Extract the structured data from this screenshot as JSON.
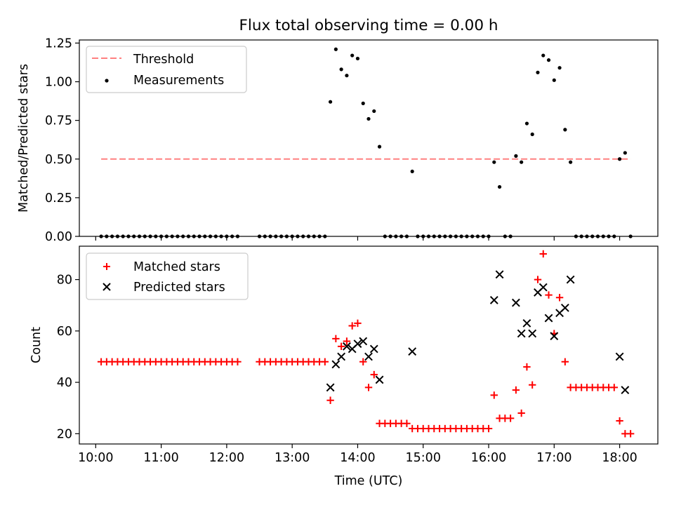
{
  "chart_data": [
    {
      "type": "scatter",
      "title": "Flux total observing time = 0.00 h",
      "xlabel": "",
      "ylabel": "Matched/Predicted stars",
      "xlim": [
        "09:45",
        "18:35"
      ],
      "ylim": [
        0,
        1.27
      ],
      "yticks": [
        "0.00",
        "0.25",
        "0.50",
        "0.75",
        "1.00",
        "1.25"
      ],
      "grid": false,
      "legend_position": "top-left",
      "threshold": {
        "name": "Threshold",
        "value": 0.5,
        "x_start": "10:05",
        "x_end": "18:10",
        "color": "#ff8080"
      },
      "series": [
        {
          "name": "Measurements",
          "color": "#000000",
          "points": [
            [
              "10:05",
              0
            ],
            [
              "10:10",
              0
            ],
            [
              "10:15",
              0
            ],
            [
              "10:20",
              0
            ],
            [
              "10:25",
              0
            ],
            [
              "10:30",
              0
            ],
            [
              "10:35",
              0
            ],
            [
              "10:40",
              0
            ],
            [
              "10:45",
              0
            ],
            [
              "10:50",
              0
            ],
            [
              "10:55",
              0
            ],
            [
              "11:00",
              0
            ],
            [
              "11:05",
              0
            ],
            [
              "11:10",
              0
            ],
            [
              "11:15",
              0
            ],
            [
              "11:20",
              0
            ],
            [
              "11:25",
              0
            ],
            [
              "11:30",
              0
            ],
            [
              "11:35",
              0
            ],
            [
              "11:40",
              0
            ],
            [
              "11:45",
              0
            ],
            [
              "11:50",
              0
            ],
            [
              "11:55",
              0
            ],
            [
              "12:00",
              0
            ],
            [
              "12:05",
              0
            ],
            [
              "12:10",
              0
            ],
            [
              "12:30",
              0
            ],
            [
              "12:35",
              0
            ],
            [
              "12:40",
              0
            ],
            [
              "12:45",
              0
            ],
            [
              "12:50",
              0
            ],
            [
              "12:55",
              0
            ],
            [
              "13:00",
              0
            ],
            [
              "13:05",
              0
            ],
            [
              "13:10",
              0
            ],
            [
              "13:15",
              0
            ],
            [
              "13:20",
              0
            ],
            [
              "13:25",
              0
            ],
            [
              "13:30",
              0
            ],
            [
              "13:35",
              0.87
            ],
            [
              "13:40",
              1.21
            ],
            [
              "13:45",
              1.08
            ],
            [
              "13:50",
              1.04
            ],
            [
              "13:55",
              1.17
            ],
            [
              "14:00",
              1.15
            ],
            [
              "14:05",
              0.86
            ],
            [
              "14:10",
              0.76
            ],
            [
              "14:15",
              0.81
            ],
            [
              "14:20",
              0.58
            ],
            [
              "14:25",
              0
            ],
            [
              "14:30",
              0
            ],
            [
              "14:35",
              0
            ],
            [
              "14:40",
              0
            ],
            [
              "14:45",
              0
            ],
            [
              "14:50",
              0.42
            ],
            [
              "14:55",
              0
            ],
            [
              "15:00",
              0
            ],
            [
              "15:05",
              0
            ],
            [
              "15:10",
              0
            ],
            [
              "15:15",
              0
            ],
            [
              "15:20",
              0
            ],
            [
              "15:25",
              0
            ],
            [
              "15:30",
              0
            ],
            [
              "15:35",
              0
            ],
            [
              "15:40",
              0
            ],
            [
              "15:45",
              0
            ],
            [
              "15:50",
              0
            ],
            [
              "15:55",
              0
            ],
            [
              "16:00",
              0
            ],
            [
              "16:05",
              0.48
            ],
            [
              "16:10",
              0.32
            ],
            [
              "16:15",
              0
            ],
            [
              "16:20",
              0
            ],
            [
              "16:25",
              0.52
            ],
            [
              "16:30",
              0.48
            ],
            [
              "16:35",
              0.73
            ],
            [
              "16:40",
              0.66
            ],
            [
              "16:45",
              1.06
            ],
            [
              "16:50",
              1.17
            ],
            [
              "16:55",
              1.14
            ],
            [
              "17:00",
              1.01
            ],
            [
              "17:05",
              1.09
            ],
            [
              "17:10",
              0.69
            ],
            [
              "17:15",
              0.48
            ],
            [
              "17:20",
              0
            ],
            [
              "17:25",
              0
            ],
            [
              "17:30",
              0
            ],
            [
              "17:35",
              0
            ],
            [
              "17:40",
              0
            ],
            [
              "17:45",
              0
            ],
            [
              "17:50",
              0
            ],
            [
              "17:55",
              0
            ],
            [
              "18:00",
              0.5
            ],
            [
              "18:05",
              0.54
            ],
            [
              "18:10",
              0
            ]
          ]
        }
      ]
    },
    {
      "type": "scatter",
      "title": "",
      "xlabel": "Time (UTC)",
      "ylabel": "Count",
      "xlim": [
        "09:45",
        "18:35"
      ],
      "ylim": [
        16,
        93
      ],
      "xticks": [
        "10:00",
        "11:00",
        "12:00",
        "13:00",
        "14:00",
        "15:00",
        "16:00",
        "17:00",
        "18:00"
      ],
      "yticks": [
        "20",
        "40",
        "60",
        "80"
      ],
      "grid": false,
      "legend_position": "top-left",
      "series": [
        {
          "name": "Matched stars",
          "marker": "plus",
          "color": "#ff0000",
          "points": [
            [
              "10:05",
              48
            ],
            [
              "10:10",
              48
            ],
            [
              "10:15",
              48
            ],
            [
              "10:20",
              48
            ],
            [
              "10:25",
              48
            ],
            [
              "10:30",
              48
            ],
            [
              "10:35",
              48
            ],
            [
              "10:40",
              48
            ],
            [
              "10:45",
              48
            ],
            [
              "10:50",
              48
            ],
            [
              "10:55",
              48
            ],
            [
              "11:00",
              48
            ],
            [
              "11:05",
              48
            ],
            [
              "11:10",
              48
            ],
            [
              "11:15",
              48
            ],
            [
              "11:20",
              48
            ],
            [
              "11:25",
              48
            ],
            [
              "11:30",
              48
            ],
            [
              "11:35",
              48
            ],
            [
              "11:40",
              48
            ],
            [
              "11:45",
              48
            ],
            [
              "11:50",
              48
            ],
            [
              "11:55",
              48
            ],
            [
              "12:00",
              48
            ],
            [
              "12:05",
              48
            ],
            [
              "12:10",
              48
            ],
            [
              "12:30",
              48
            ],
            [
              "12:35",
              48
            ],
            [
              "12:40",
              48
            ],
            [
              "12:45",
              48
            ],
            [
              "12:50",
              48
            ],
            [
              "12:55",
              48
            ],
            [
              "13:00",
              48
            ],
            [
              "13:05",
              48
            ],
            [
              "13:10",
              48
            ],
            [
              "13:15",
              48
            ],
            [
              "13:20",
              48
            ],
            [
              "13:25",
              48
            ],
            [
              "13:30",
              48
            ],
            [
              "13:35",
              33
            ],
            [
              "13:40",
              57
            ],
            [
              "13:45",
              54
            ],
            [
              "13:50",
              56
            ],
            [
              "13:55",
              62
            ],
            [
              "14:00",
              63
            ],
            [
              "14:05",
              48
            ],
            [
              "14:10",
              38
            ],
            [
              "14:15",
              43
            ],
            [
              "14:20",
              24
            ],
            [
              "14:25",
              24
            ],
            [
              "14:30",
              24
            ],
            [
              "14:35",
              24
            ],
            [
              "14:40",
              24
            ],
            [
              "14:45",
              24
            ],
            [
              "14:50",
              22
            ],
            [
              "14:55",
              22
            ],
            [
              "15:00",
              22
            ],
            [
              "15:05",
              22
            ],
            [
              "15:10",
              22
            ],
            [
              "15:15",
              22
            ],
            [
              "15:20",
              22
            ],
            [
              "15:25",
              22
            ],
            [
              "15:30",
              22
            ],
            [
              "15:35",
              22
            ],
            [
              "15:40",
              22
            ],
            [
              "15:45",
              22
            ],
            [
              "15:50",
              22
            ],
            [
              "15:55",
              22
            ],
            [
              "16:00",
              22
            ],
            [
              "16:05",
              35
            ],
            [
              "16:10",
              26
            ],
            [
              "16:15",
              26
            ],
            [
              "16:20",
              26
            ],
            [
              "16:25",
              37
            ],
            [
              "16:30",
              28
            ],
            [
              "16:35",
              46
            ],
            [
              "16:40",
              39
            ],
            [
              "16:45",
              80
            ],
            [
              "16:50",
              90
            ],
            [
              "16:55",
              74
            ],
            [
              "17:00",
              59
            ],
            [
              "17:05",
              73
            ],
            [
              "17:10",
              48
            ],
            [
              "17:15",
              38
            ],
            [
              "17:20",
              38
            ],
            [
              "17:25",
              38
            ],
            [
              "17:30",
              38
            ],
            [
              "17:35",
              38
            ],
            [
              "17:40",
              38
            ],
            [
              "17:45",
              38
            ],
            [
              "17:50",
              38
            ],
            [
              "17:55",
              38
            ],
            [
              "18:00",
              25
            ],
            [
              "18:05",
              20
            ],
            [
              "18:10",
              20
            ]
          ]
        },
        {
          "name": "Predicted stars",
          "marker": "x",
          "color": "#000000",
          "points": [
            [
              "13:35",
              38
            ],
            [
              "13:40",
              47
            ],
            [
              "13:45",
              50
            ],
            [
              "13:50",
              54
            ],
            [
              "13:55",
              53
            ],
            [
              "14:00",
              55
            ],
            [
              "14:05",
              56
            ],
            [
              "14:10",
              50
            ],
            [
              "14:15",
              53
            ],
            [
              "14:20",
              41
            ],
            [
              "14:50",
              52
            ],
            [
              "16:05",
              72
            ],
            [
              "16:10",
              82
            ],
            [
              "16:25",
              71
            ],
            [
              "16:30",
              59
            ],
            [
              "16:35",
              63
            ],
            [
              "16:40",
              59
            ],
            [
              "16:45",
              75
            ],
            [
              "16:50",
              77
            ],
            [
              "16:55",
              65
            ],
            [
              "17:00",
              58
            ],
            [
              "17:05",
              67
            ],
            [
              "17:10",
              69
            ],
            [
              "17:15",
              80
            ],
            [
              "18:00",
              50
            ],
            [
              "18:05",
              37
            ]
          ]
        }
      ]
    }
  ]
}
